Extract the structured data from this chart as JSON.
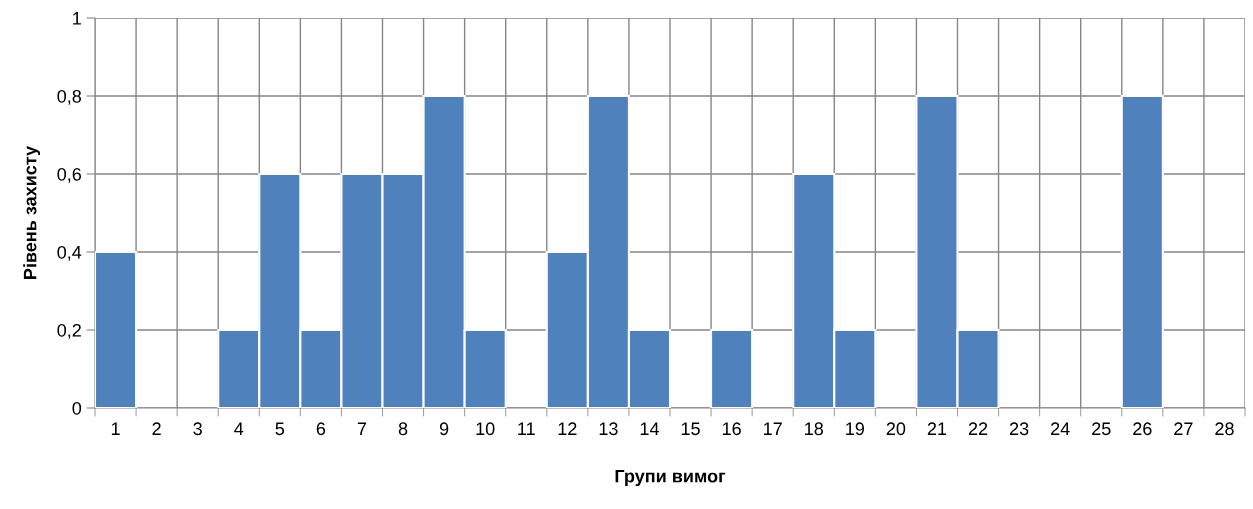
{
  "chart_data": {
    "type": "bar",
    "xlabel": "Групи вимог",
    "ylabel": "Рівень захисту",
    "categories": [
      "1",
      "2",
      "3",
      "4",
      "5",
      "6",
      "7",
      "8",
      "9",
      "10",
      "11",
      "12",
      "13",
      "14",
      "15",
      "16",
      "17",
      "18",
      "19",
      "20",
      "21",
      "22",
      "23",
      "24",
      "25",
      "26",
      "27",
      "28"
    ],
    "values": [
      0.4,
      0,
      0,
      0.2,
      0.6,
      0.2,
      0.6,
      0.6,
      0.8,
      0.2,
      0,
      0.4,
      0.8,
      0.2,
      0,
      0.2,
      0,
      0.6,
      0.2,
      0,
      0.8,
      0.2,
      0,
      0,
      0,
      0.8,
      0,
      0
    ],
    "color": "#4f81bd",
    "ylim": [
      0,
      1
    ],
    "yticks": [
      0,
      {
        "value": 0.2,
        "label": "0,2"
      },
      {
        "value": 0.4,
        "label": "0,4"
      },
      {
        "value": 0.6,
        "label": "0,6"
      },
      {
        "value": 0.8,
        "label": "0,8"
      },
      1
    ],
    "grid": true
  }
}
